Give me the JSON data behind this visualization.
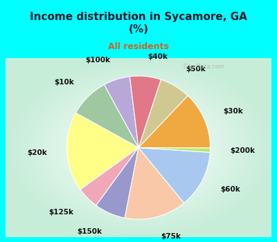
{
  "title": "Income distribution in Sycamore, GA\n(%)",
  "subtitle": "All residents",
  "bg_outer": "#00FFFF",
  "bg_chart": "#c8edd8",
  "title_color": "#1a1a2e",
  "subtitle_color": "#cc6622",
  "labels": [
    "$100k",
    "$10k",
    "$20k",
    "$125k",
    "$150k",
    "$75k",
    "$60k",
    "$200k",
    "$30k",
    "$50k",
    "$40k"
  ],
  "sizes": [
    6,
    9,
    18,
    5,
    7,
    14,
    13,
    1,
    13,
    7,
    7
  ],
  "colors": [
    "#b8a8d8",
    "#a0c8a0",
    "#ffff88",
    "#f0a8b8",
    "#9898cc",
    "#f8c8a8",
    "#a8c8f0",
    "#b8e870",
    "#f0a840",
    "#d0c890",
    "#e07888"
  ],
  "title_fontsize": 11,
  "subtitle_fontsize": 9,
  "label_fontsize": 7.5,
  "startangle": 97,
  "labeldistance": 1.28,
  "border_width": 8
}
